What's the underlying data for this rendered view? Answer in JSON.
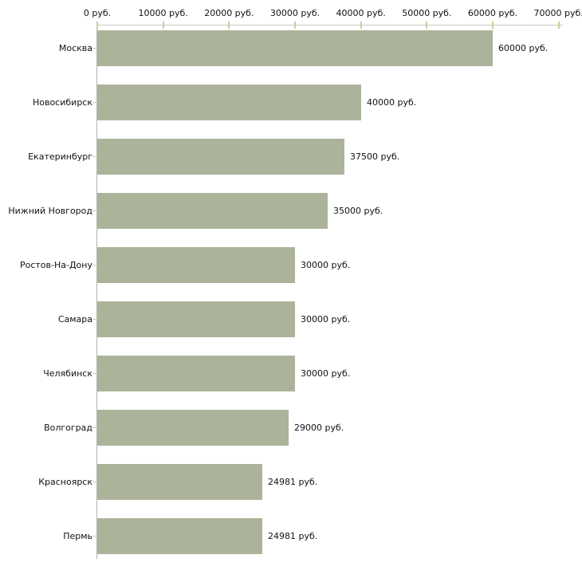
{
  "chart_data": {
    "type": "bar",
    "orientation": "horizontal",
    "title": "",
    "xlabel": "",
    "ylabel": "",
    "categories": [
      "Москва",
      "Новосибирск",
      "Екатеринбург",
      "Нижний Новгород",
      "Ростов-На-Дону",
      "Самара",
      "Челябинск",
      "Волгоград",
      "Красноярск",
      "Пермь"
    ],
    "values": [
      60000,
      40000,
      37500,
      35000,
      30000,
      30000,
      30000,
      29000,
      24981,
      24981
    ],
    "value_labels": [
      "60000 руб.",
      "40000 руб.",
      "37500 руб.",
      "35000 руб.",
      "30000 руб.",
      "30000 руб.",
      "30000 руб.",
      "29000 руб.",
      "24981 руб.",
      "24981 руб."
    ],
    "x_ticks": [
      0,
      10000,
      20000,
      30000,
      40000,
      50000,
      60000,
      70000
    ],
    "x_tick_labels": [
      "0 руб.",
      "10000 руб.",
      "20000 руб.",
      "30000 руб.",
      "40000 руб.",
      "50000 руб.",
      "60000 руб.",
      "70000 руб."
    ],
    "xlim": [
      0,
      70000
    ],
    "unit": "руб.",
    "grid": false,
    "legend": false,
    "axis_position": "top",
    "colors": {
      "bar": "#abb49a",
      "tick": "#cccc99",
      "axis_horizontal": "#c6c6c6",
      "axis_vertical": "#b3b3b3",
      "text": "#111111",
      "background": "#ffffff"
    }
  }
}
